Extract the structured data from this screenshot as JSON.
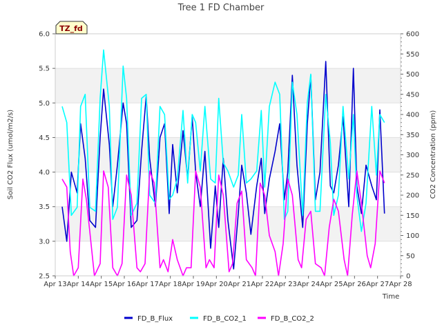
{
  "chart_data": {
    "type": "line",
    "title": "Tree 1 FD Chamber",
    "badge": "TZ_fd",
    "xlabel": "Time",
    "ylabel": "Soil CO2 Flux (umol/m2/s)",
    "y2label": "CO2 Concentration (ppm)",
    "x_ticks": [
      "Apr 13",
      "Apr 14",
      "Apr 15",
      "Apr 16",
      "Apr 17",
      "Apr 18",
      "Apr 19",
      "Apr 20",
      "Apr 21",
      "Apr 22",
      "Apr 23",
      "Apr 24",
      "Apr 25",
      "Apr 26",
      "Apr 27",
      "Apr 28"
    ],
    "xlim": [
      0,
      15
    ],
    "ylim": [
      2.5,
      6.0
    ],
    "y_ticks": [
      "2.5",
      "3.0",
      "3.5",
      "4.0",
      "4.5",
      "5.0",
      "5.5",
      "6.0"
    ],
    "y2lim": [
      0,
      600
    ],
    "y2_ticks": [
      "0",
      "50",
      "100",
      "150",
      "200",
      "250",
      "300",
      "350",
      "400",
      "450",
      "500",
      "550",
      "600"
    ],
    "grid": "horizontal bands",
    "legend_position": "bottom-center",
    "series": [
      {
        "name": "FD_B_Flux",
        "axis": "left",
        "color": "#0000cc",
        "x": [
          0.3,
          0.5,
          0.7,
          0.95,
          1.1,
          1.3,
          1.5,
          1.75,
          1.95,
          2.1,
          2.35,
          2.5,
          2.7,
          2.95,
          3.1,
          3.3,
          3.55,
          3.75,
          3.95,
          4.1,
          4.35,
          4.55,
          4.75,
          4.95,
          5.1,
          5.3,
          5.55,
          5.75,
          5.95,
          6.1,
          6.3,
          6.5,
          6.75,
          6.95,
          7.1,
          7.3,
          7.5,
          7.75,
          7.95,
          8.1,
          8.3,
          8.5,
          8.75,
          8.95,
          9.1,
          9.3,
          9.55,
          9.75,
          9.95,
          10.1,
          10.3,
          10.5,
          10.75,
          10.95,
          11.1,
          11.3,
          11.5,
          11.75,
          11.95,
          12.1,
          12.3,
          12.5,
          12.75,
          12.95,
          13.1,
          13.3,
          13.5,
          13.75,
          13.95,
          14.1,
          14.3
        ],
        "y": [
          3.5,
          3.0,
          4.0,
          3.7,
          4.7,
          4.2,
          3.3,
          3.2,
          4.5,
          5.2,
          4.4,
          3.5,
          4.1,
          5.0,
          4.7,
          3.2,
          3.3,
          4.3,
          5.1,
          4.2,
          3.5,
          4.5,
          4.7,
          3.4,
          4.4,
          3.7,
          4.6,
          3.9,
          4.8,
          4.0,
          3.5,
          4.3,
          2.9,
          3.8,
          3.2,
          4.2,
          3.3,
          2.6,
          3.4,
          4.1,
          3.7,
          3.1,
          3.8,
          4.2,
          3.4,
          3.9,
          4.3,
          4.7,
          3.6,
          4.0,
          5.4,
          4.1,
          3.2,
          4.7,
          5.4,
          3.6,
          4.0,
          5.6,
          3.8,
          3.7,
          4.1,
          4.8,
          3.5,
          5.5,
          3.8,
          3.4,
          4.1,
          3.8,
          3.6,
          4.9,
          3.4
        ]
      },
      {
        "name": "FD_B_CO2_1",
        "axis": "right",
        "color": "#00ffff",
        "x": [
          0.3,
          0.5,
          0.7,
          0.95,
          1.1,
          1.3,
          1.5,
          1.75,
          1.95,
          2.1,
          2.35,
          2.5,
          2.7,
          2.95,
          3.1,
          3.3,
          3.55,
          3.75,
          3.95,
          4.1,
          4.35,
          4.55,
          4.75,
          4.95,
          5.1,
          5.3,
          5.55,
          5.75,
          5.95,
          6.1,
          6.3,
          6.5,
          6.75,
          6.95,
          7.1,
          7.3,
          7.5,
          7.75,
          7.95,
          8.1,
          8.3,
          8.5,
          8.75,
          8.95,
          9.1,
          9.3,
          9.55,
          9.75,
          9.95,
          10.1,
          10.3,
          10.5,
          10.75,
          10.95,
          11.1,
          11.3,
          11.5,
          11.75,
          11.95,
          12.1,
          12.3,
          12.5,
          12.75,
          12.95,
          13.1,
          13.3,
          13.5,
          13.75,
          13.95,
          14.1,
          14.3
        ],
        "y": [
          420,
          380,
          150,
          170,
          420,
          450,
          170,
          160,
          440,
          560,
          420,
          140,
          170,
          520,
          440,
          150,
          180,
          440,
          450,
          200,
          180,
          420,
          400,
          190,
          200,
          240,
          410,
          230,
          400,
          380,
          260,
          420,
          240,
          230,
          440,
          280,
          260,
          220,
          250,
          400,
          230,
          240,
          260,
          410,
          220,
          420,
          480,
          450,
          140,
          160,
          480,
          400,
          150,
          430,
          500,
          160,
          160,
          450,
          330,
          150,
          200,
          420,
          240,
          400,
          200,
          110,
          180,
          420,
          250,
          400,
          380
        ]
      },
      {
        "name": "FD_B_CO2_2",
        "axis": "right",
        "color": "#ff00ff",
        "x": [
          0.3,
          0.5,
          0.65,
          0.8,
          1.0,
          1.2,
          1.35,
          1.5,
          1.7,
          1.95,
          2.1,
          2.3,
          2.5,
          2.7,
          2.9,
          3.1,
          3.3,
          3.55,
          3.7,
          3.9,
          4.1,
          4.3,
          4.55,
          4.7,
          4.9,
          5.1,
          5.3,
          5.55,
          5.7,
          5.9,
          6.1,
          6.3,
          6.55,
          6.7,
          6.9,
          7.1,
          7.3,
          7.55,
          7.7,
          7.9,
          8.1,
          8.3,
          8.55,
          8.7,
          8.9,
          9.1,
          9.3,
          9.55,
          9.7,
          9.9,
          10.1,
          10.3,
          10.55,
          10.7,
          10.9,
          11.1,
          11.3,
          11.55,
          11.7,
          11.9,
          12.1,
          12.3,
          12.55,
          12.7,
          12.9,
          13.1,
          13.3,
          13.55,
          13.7,
          13.9,
          14.1,
          14.3
        ],
        "y": [
          240,
          220,
          60,
          0,
          20,
          240,
          190,
          110,
          0,
          30,
          260,
          220,
          20,
          0,
          30,
          250,
          200,
          20,
          10,
          30,
          260,
          230,
          20,
          40,
          10,
          90,
          40,
          0,
          20,
          20,
          260,
          220,
          20,
          40,
          20,
          250,
          200,
          10,
          30,
          180,
          210,
          40,
          20,
          0,
          230,
          200,
          100,
          60,
          0,
          80,
          240,
          200,
          40,
          20,
          140,
          160,
          30,
          20,
          0,
          120,
          190,
          160,
          40,
          0,
          150,
          260,
          180,
          50,
          20,
          80,
          260,
          230
        ]
      }
    ]
  }
}
